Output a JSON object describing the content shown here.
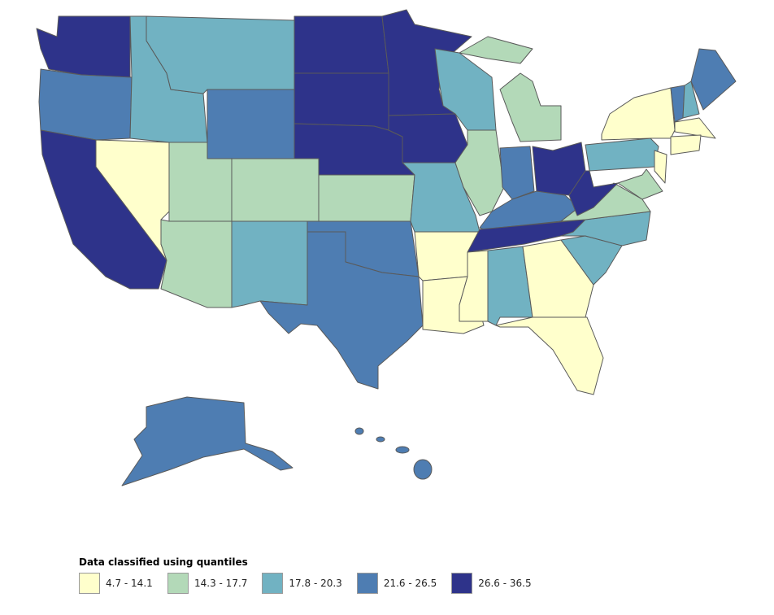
{
  "legend": {
    "title": "Data classified using quantiles",
    "classes": [
      {
        "label": "4.7 - 14.1",
        "color": "#ffffcc"
      },
      {
        "label": "14.3 - 17.7",
        "color": "#b3d9b8"
      },
      {
        "label": "17.8 - 20.3",
        "color": "#71b2c2"
      },
      {
        "label": "21.6 - 26.5",
        "color": "#4e7db2"
      },
      {
        "label": "26.6 - 36.5",
        "color": "#2e338a"
      }
    ]
  },
  "states": {
    "WA": 4,
    "OR": 3,
    "CA": 4,
    "NV": 0,
    "ID": 2,
    "MT": 2,
    "WY": 3,
    "UT": 1,
    "AZ": 1,
    "CO": 1,
    "NM": 2,
    "ND": 4,
    "SD": 4,
    "NE": 4,
    "KS": 1,
    "OK": 3,
    "TX": 3,
    "MN": 4,
    "IA": 4,
    "MO": 2,
    "AR": 0,
    "LA": 0,
    "WI": 2,
    "IL": 1,
    "MI": 1,
    "IN": 3,
    "OH": 4,
    "KY": 3,
    "TN": 4,
    "MS": 0,
    "AL": 2,
    "GA": 0,
    "FL": 0,
    "SC": 2,
    "NC": 2,
    "VA": 1,
    "WV": 4,
    "PA": 2,
    "NY": 0,
    "NJ": 0,
    "MD": 1,
    "VT": 3,
    "NH": 2,
    "ME": 3,
    "MA": 0,
    "CT": 0,
    "AK": 3,
    "HI": 3
  }
}
